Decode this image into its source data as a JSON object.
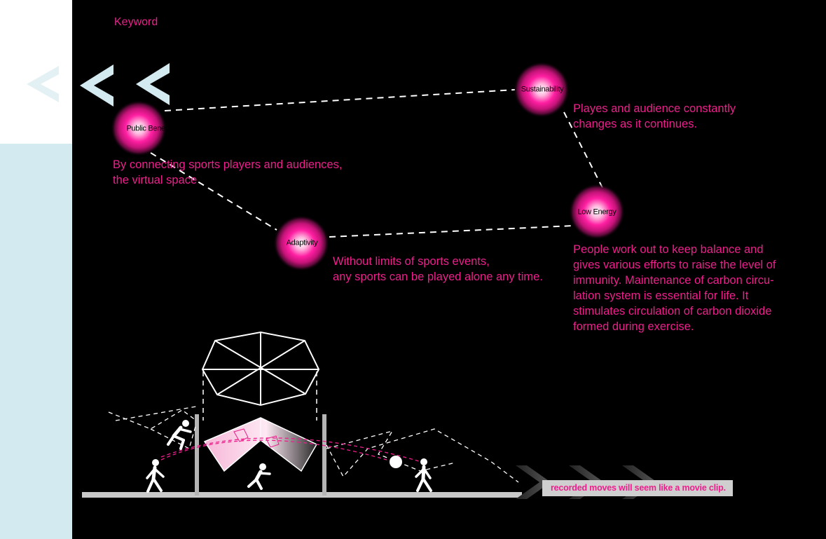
{
  "heading": "Keyword",
  "nodes": [
    {
      "id": "public-benefit",
      "label": "Public Benefit"
    },
    {
      "id": "sustainability",
      "label": "Sustainability"
    },
    {
      "id": "low-energy",
      "label": "Low Energy"
    },
    {
      "id": "adaptivity",
      "label": "Adaptivity"
    }
  ],
  "descriptions": {
    "public_benefit": [
      "By connecting sports players and audiences,",
      "the virtual space"
    ],
    "sustainability": [
      "Playes and audience constantly",
      "changes as it continues."
    ],
    "adaptivity": [
      "Without limits of sports events,",
      "any sports can be played alone any time."
    ],
    "low_energy": [
      "People work out to keep balance and",
      "gives various efforts to raise the level of",
      "immunity. Maintenance of carbon circu-",
      "lation system is essential for life. It",
      "stimulates circulation of carbon dioxide",
      "formed during exercise."
    ]
  },
  "caption": "recorded moves will seem like a movie clip.",
  "colors": {
    "accent": "#ec1f8c",
    "panel": "#000000",
    "side_light": "#d3ebf0",
    "chevron": "#d3ebf0"
  },
  "icons": [
    "chevron-left-icon",
    "chevron-right-icon",
    "person-icon",
    "ball-icon",
    "dome-icon"
  ]
}
